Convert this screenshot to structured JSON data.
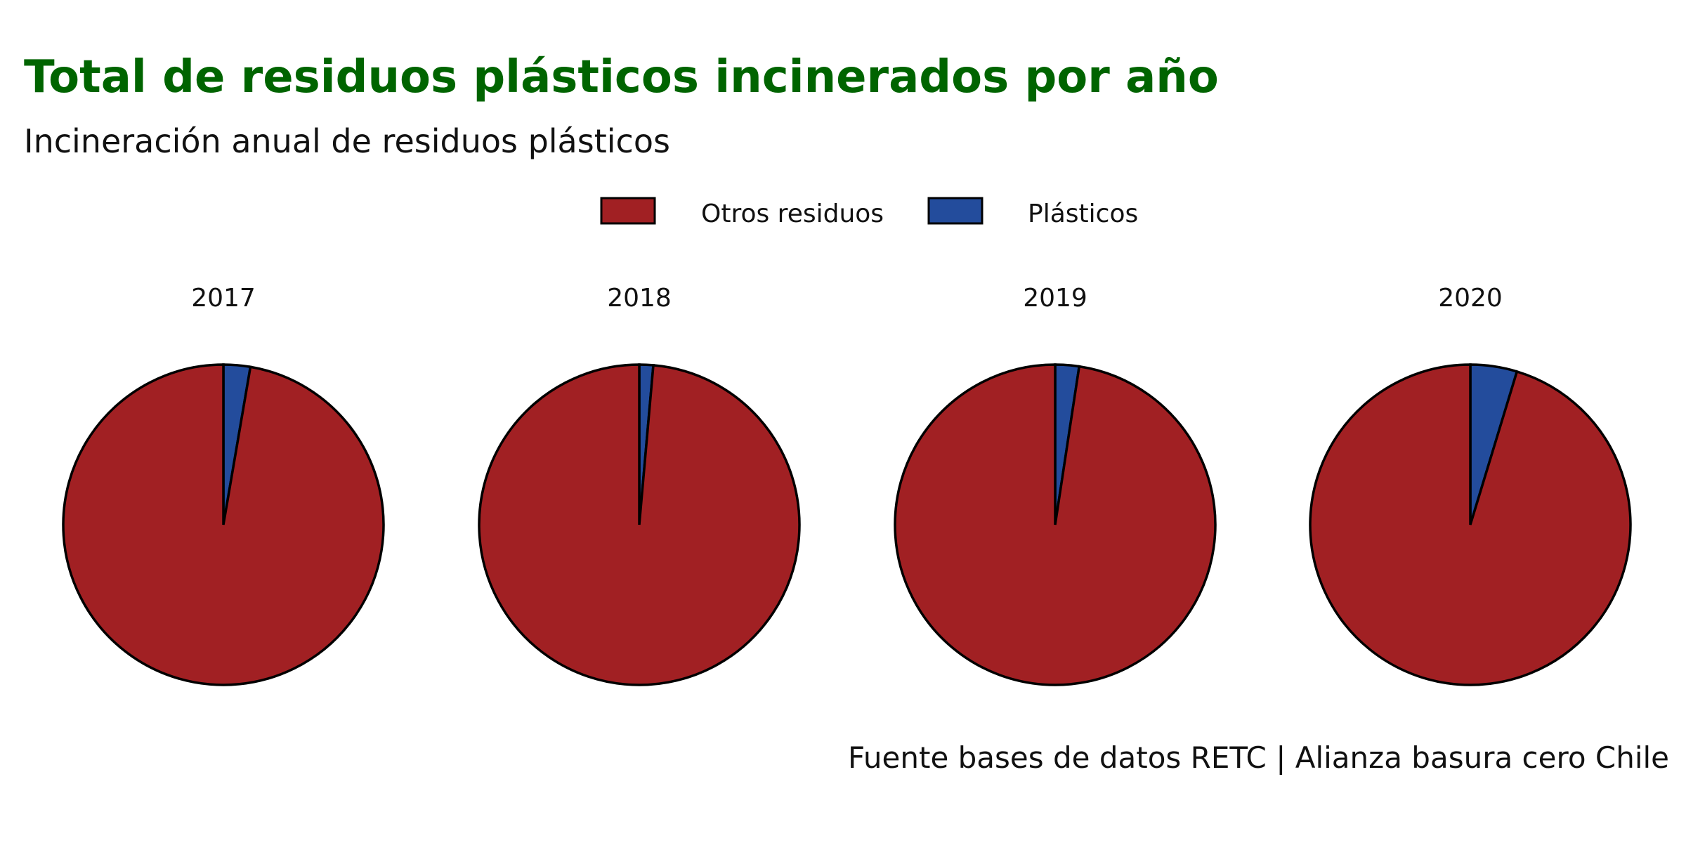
{
  "chart_data": {
    "type": "pie",
    "title": "Total de residuos plásticos incinerados por año",
    "subtitle": "Incineración anual de residuos plásticos",
    "caption": "Fuente bases de datos RETC | Alianza basura cero Chile",
    "legend_position": "top",
    "series": [
      {
        "name": "Otros residuos",
        "color": "#A12023"
      },
      {
        "name": "Plásticos",
        "color": "#234C9C"
      }
    ],
    "facets": [
      {
        "label": "2017",
        "values": [
          97.3,
          2.7
        ]
      },
      {
        "label": "2018",
        "values": [
          98.6,
          1.4
        ]
      },
      {
        "label": "2019",
        "values": [
          97.6,
          2.4
        ]
      },
      {
        "label": "2020",
        "values": [
          95.3,
          4.7
        ]
      }
    ]
  },
  "colors": {
    "title": "#006400",
    "outline": "#000000"
  }
}
